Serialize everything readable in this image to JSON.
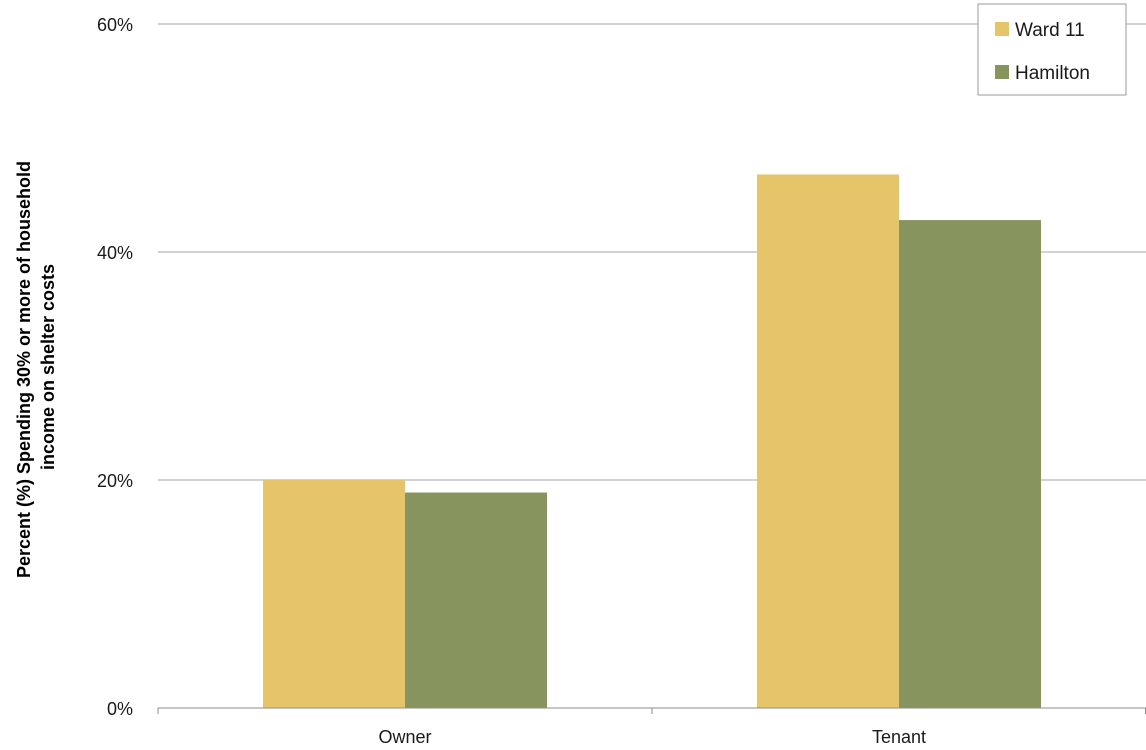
{
  "chart_data": {
    "type": "bar",
    "categories": [
      "Owner",
      "Tenant"
    ],
    "series": [
      {
        "name": "Ward 11",
        "values": [
          20,
          46.8
        ],
        "color": "#e6c46a"
      },
      {
        "name": "Hamilton",
        "values": [
          18.9,
          42.8
        ],
        "color": "#87945e"
      }
    ],
    "ylabel_lines": [
      "Percent (%) Spending 30% or more of household",
      "income on shelter costs"
    ],
    "ylim": [
      0,
      60
    ],
    "yticks": [
      0,
      20,
      40,
      60
    ],
    "ytick_labels": [
      "0%",
      "20%",
      "40%",
      "60%"
    ],
    "grid": true,
    "legend_position": "top-right"
  }
}
